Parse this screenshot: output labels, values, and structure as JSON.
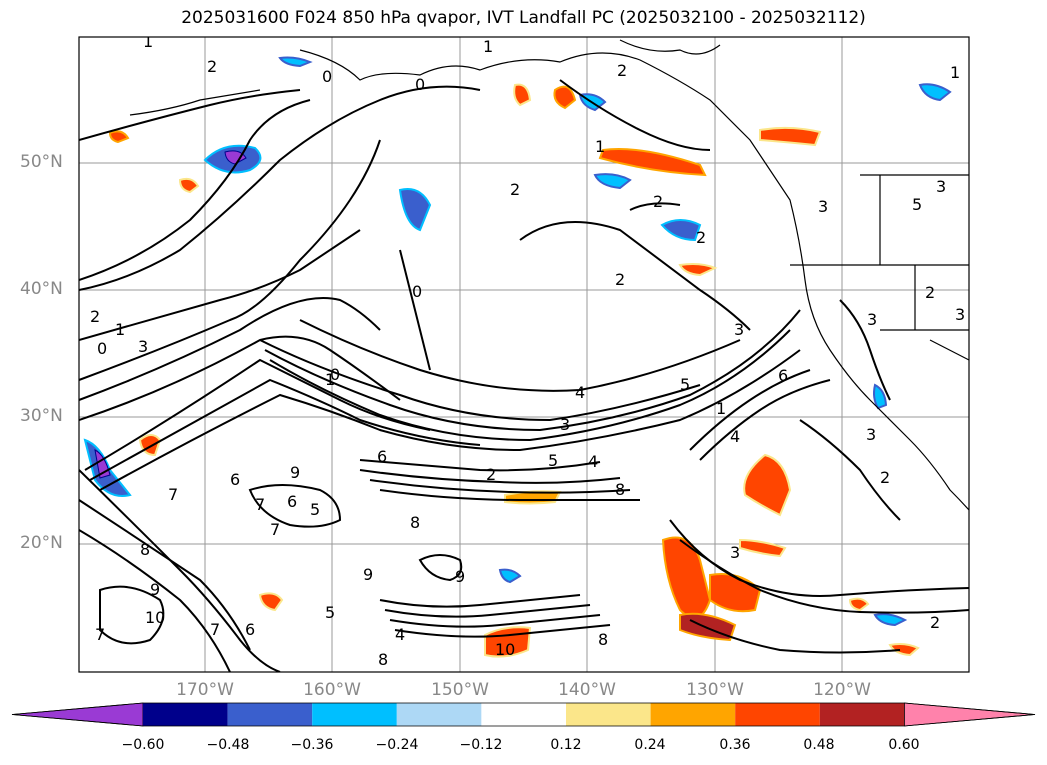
{
  "title": "2025031600 F024 850 hPa qvapor, IVT Landfall PC (2025032100 - 2025032112)",
  "lat_labels": [
    "50°N",
    "40°N",
    "30°N",
    "20°N"
  ],
  "lon_labels": [
    "170°W",
    "160°W",
    "150°W",
    "140°W",
    "130°W",
    "120°W"
  ],
  "colorbar": {
    "ticks": [
      "−0.60",
      "−0.48",
      "−0.36",
      "−0.24",
      "−0.12",
      "0.12",
      "0.24",
      "0.36",
      "0.48",
      "0.60"
    ],
    "colors": [
      "#9a3ad4",
      "#00008b",
      "#3a5fcd",
      "#00bfff",
      "#add8f5",
      "#ffffff",
      "#fbe68a",
      "#ffa500",
      "#ff4500",
      "#b22222",
      "#ff82ab"
    ]
  },
  "contour_labels": [
    "1",
    "2",
    "0",
    "1",
    "0",
    "2",
    "2",
    "1",
    "0",
    "2",
    "1",
    "2",
    "3",
    "5",
    "3",
    "3",
    "0",
    "1",
    "2",
    "3",
    "4",
    "5",
    "6",
    "4",
    "5",
    "3",
    "2",
    "1",
    "3",
    "4",
    "6",
    "7",
    "8",
    "9",
    "6",
    "7",
    "8",
    "7",
    "5",
    "6",
    "8",
    "9",
    "10",
    "9",
    "8",
    "7",
    "6",
    "5",
    "4",
    "3",
    "2",
    "10",
    "9",
    "8",
    "7",
    "3",
    "2",
    "2",
    "1",
    "0",
    "2",
    "3"
  ]
}
